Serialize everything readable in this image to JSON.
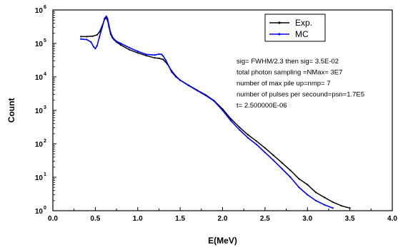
{
  "chart_data": {
    "type": "line",
    "xlabel": "E(MeV)",
    "ylabel": "Count",
    "xlim": [
      0.0,
      4.0
    ],
    "ylim": [
      1,
      1000000
    ],
    "y_scale": "log",
    "grid": false,
    "legend_placement": "top-right",
    "x_ticks": [
      "0.0",
      "0.5",
      "1.0",
      "1.5",
      "2.0",
      "2.5",
      "3.0",
      "3.5",
      "4.0"
    ],
    "y_ticks": [
      {
        "base": "10",
        "exp": "0"
      },
      {
        "base": "10",
        "exp": "1"
      },
      {
        "base": "10",
        "exp": "2"
      },
      {
        "base": "10",
        "exp": "3"
      },
      {
        "base": "10",
        "exp": "4"
      },
      {
        "base": "10",
        "exp": "5"
      },
      {
        "base": "10",
        "exp": "6"
      }
    ],
    "annotations": [
      "sig= FWHM/2.3 then sig=   3.5E-02",
      " total photon sampling =NMax=    3E7",
      "number of max pile up=nmp= 7",
      "number of pulses per secound=psn=1.7E5",
      "t=   2.500000E-06"
    ],
    "series": [
      {
        "name": "Exp.",
        "color": "#000000",
        "x": [
          0.33,
          0.4,
          0.47,
          0.52,
          0.55,
          0.58,
          0.61,
          0.63,
          0.645,
          0.66,
          0.68,
          0.7,
          0.72,
          0.75,
          0.8,
          0.9,
          1.0,
          1.1,
          1.2,
          1.25,
          1.3,
          1.35,
          1.4,
          1.45,
          1.5,
          1.6,
          1.7,
          1.8,
          1.9,
          2.0,
          2.1,
          2.2,
          2.3,
          2.4,
          2.5,
          2.6,
          2.7,
          2.8,
          2.9,
          3.0,
          3.1,
          3.2,
          3.3,
          3.4,
          3.5
        ],
        "values": [
          160000,
          160000,
          165000,
          180000,
          220000,
          330000,
          530000,
          580000,
          480000,
          320000,
          190000,
          150000,
          130000,
          110000,
          90000,
          65000,
          52000,
          43000,
          37000,
          36000,
          33000,
          24000,
          15000,
          10500,
          8000,
          5600,
          4000,
          2900,
          1950,
          1100,
          550,
          310,
          185,
          120,
          75,
          45,
          27,
          16,
          9,
          6,
          3.5,
          2.5,
          1.8,
          1.4,
          1.2
        ]
      },
      {
        "name": "MC",
        "color": "#0000ff",
        "x": [
          0.33,
          0.4,
          0.45,
          0.48,
          0.5,
          0.52,
          0.55,
          0.58,
          0.61,
          0.63,
          0.645,
          0.66,
          0.68,
          0.7,
          0.72,
          0.75,
          0.8,
          0.9,
          1.0,
          1.1,
          1.2,
          1.25,
          1.28,
          1.3,
          1.33,
          1.37,
          1.4,
          1.45,
          1.5,
          1.6,
          1.7,
          1.8,
          1.9,
          2.0,
          2.1,
          2.2,
          2.3,
          2.4,
          2.5,
          2.6,
          2.7,
          2.8,
          2.9,
          3.0,
          3.1,
          3.2,
          3.3
        ],
        "values": [
          135000,
          130000,
          110000,
          80000,
          70000,
          85000,
          160000,
          300000,
          560000,
          650000,
          550000,
          350000,
          210000,
          160000,
          135000,
          115000,
          100000,
          75000,
          58000,
          47000,
          45000,
          48000,
          47000,
          42000,
          32000,
          20000,
          14000,
          10000,
          8000,
          5500,
          3900,
          2800,
          1900,
          1000,
          480,
          260,
          150,
          95,
          55,
          32,
          18,
          10,
          5,
          3,
          2,
          1.5,
          1.2
        ]
      }
    ]
  }
}
